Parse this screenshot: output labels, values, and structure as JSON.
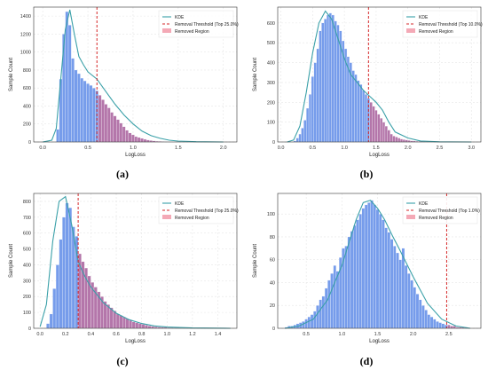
{
  "figure": {
    "captions": [
      "(a)",
      "(b)",
      "(c)",
      "(d)"
    ]
  },
  "colors": {
    "bar": "#6f97ea",
    "bar_removed": "#b06fa6",
    "kde": "#3aa0a8",
    "threshold": "#d62728",
    "removed_legend": "#f4a9b6",
    "grid": "#e6e6e6"
  },
  "chart_data": [
    {
      "type": "bar",
      "xlabel": "LogLoss",
      "ylabel": "Sample Count",
      "xlim": [
        -0.1,
        2.15
      ],
      "ylim": [
        0,
        1500
      ],
      "xticks": [
        0.0,
        0.5,
        1.0,
        1.5,
        2.0
      ],
      "yticks": [
        0,
        200,
        400,
        600,
        800,
        1000,
        1200,
        1400
      ],
      "grid": true,
      "legend_position": "top-right",
      "legend": [
        "KDE",
        "Removal Threshold (Top 25.0%)",
        "Removed Region"
      ],
      "threshold": 0.6,
      "bin_start": 0.15,
      "bin_width": 0.0333,
      "counts": [
        140,
        700,
        1200,
        1450,
        1300,
        930,
        800,
        760,
        710,
        680,
        650,
        630,
        600,
        570,
        520,
        470,
        420,
        380,
        330,
        290,
        250,
        210,
        170,
        130,
        100,
        80,
        60,
        50,
        40,
        30,
        22,
        16,
        12,
        9,
        7,
        5,
        4,
        3,
        2,
        2
      ],
      "kde_x": [
        0.0,
        0.1,
        0.15,
        0.2,
        0.25,
        0.3,
        0.35,
        0.4,
        0.45,
        0.5,
        0.6,
        0.7,
        0.8,
        0.9,
        1.0,
        1.1,
        1.2,
        1.3,
        1.4,
        1.5,
        1.7,
        2.0
      ],
      "kde_y": [
        0,
        20,
        150,
        700,
        1250,
        1470,
        1200,
        950,
        860,
        780,
        700,
        560,
        420,
        300,
        200,
        120,
        70,
        40,
        20,
        10,
        3,
        0
      ]
    },
    {
      "type": "bar",
      "xlabel": "LogLoss",
      "ylabel": "Sample Count",
      "xlim": [
        -0.05,
        3.15
      ],
      "ylim": [
        0,
        680
      ],
      "xticks": [
        0.0,
        0.5,
        1.0,
        1.5,
        2.0,
        2.5,
        3.0
      ],
      "yticks": [
        0,
        100,
        200,
        300,
        400,
        500,
        600
      ],
      "grid": true,
      "legend_position": "top-right",
      "legend": [
        "KDE",
        "Removal Threshold (Top 10.0%)",
        "Removed Region"
      ],
      "threshold": 1.38,
      "bin_start": 0.2,
      "bin_width": 0.04,
      "counts": [
        5,
        20,
        40,
        70,
        110,
        170,
        240,
        330,
        400,
        470,
        560,
        600,
        620,
        640,
        650,
        640,
        610,
        590,
        560,
        510,
        470,
        430,
        400,
        360,
        340,
        310,
        290,
        260,
        240,
        220,
        200,
        180,
        160,
        140,
        120,
        100,
        80,
        60,
        40,
        30,
        25,
        20,
        15,
        12,
        10,
        8,
        6,
        5,
        4,
        3,
        3,
        2,
        2,
        2,
        1
      ],
      "kde_x": [
        0.1,
        0.2,
        0.3,
        0.4,
        0.5,
        0.6,
        0.7,
        0.8,
        0.9,
        1.0,
        1.1,
        1.2,
        1.3,
        1.4,
        1.5,
        1.6,
        1.7,
        1.8,
        2.0,
        2.2,
        2.5,
        3.0
      ],
      "kde_y": [
        0,
        10,
        80,
        250,
        450,
        600,
        660,
        620,
        520,
        420,
        340,
        300,
        260,
        230,
        200,
        160,
        100,
        50,
        20,
        5,
        1,
        0
      ]
    },
    {
      "type": "bar",
      "xlabel": "LogLoss",
      "ylabel": "Sample Count",
      "xlim": [
        -0.05,
        1.55
      ],
      "ylim": [
        0,
        850
      ],
      "xticks": [
        0.0,
        0.2,
        0.4,
        0.6,
        0.8,
        1.0,
        1.2,
        1.4
      ],
      "yticks": [
        0,
        100,
        200,
        300,
        400,
        500,
        600,
        700,
        800
      ],
      "grid": true,
      "legend_position": "top-right",
      "legend": [
        "KDE",
        "Removal Threshold (Top 25.0%)",
        "Removed Region"
      ],
      "threshold": 0.3,
      "bin_start": 0.05,
      "bin_width": 0.025,
      "counts": [
        30,
        90,
        250,
        400,
        560,
        700,
        790,
        760,
        640,
        580,
        470,
        420,
        380,
        330,
        290,
        260,
        230,
        200,
        170,
        150,
        130,
        110,
        90,
        80,
        70,
        60,
        50,
        40,
        35,
        30,
        25,
        20,
        15,
        12,
        10,
        8,
        7,
        6,
        5,
        4,
        3,
        3,
        2,
        2,
        2,
        1
      ],
      "kde_x": [
        0.0,
        0.05,
        0.1,
        0.15,
        0.2,
        0.25,
        0.3,
        0.35,
        0.4,
        0.5,
        0.6,
        0.7,
        0.8,
        0.9,
        1.0,
        1.2,
        1.5
      ],
      "kde_y": [
        10,
        150,
        550,
        800,
        830,
        650,
        420,
        330,
        260,
        160,
        95,
        55,
        30,
        15,
        8,
        2,
        0
      ]
    },
    {
      "type": "bar",
      "xlabel": "LogLoss",
      "ylabel": "Sample Count",
      "xlim": [
        0.1,
        2.95
      ],
      "ylim": [
        0,
        118
      ],
      "xticks": [
        0.5,
        1.0,
        1.5,
        2.0,
        2.5
      ],
      "yticks": [
        0,
        20,
        40,
        60,
        80,
        100
      ],
      "grid": true,
      "legend_position": "top-right",
      "legend": [
        "KDE",
        "Removal Threshold (Top 1.0%)",
        "Removed Region"
      ],
      "threshold": 2.47,
      "bin_start": 0.2,
      "bin_width": 0.04,
      "counts": [
        1,
        2,
        2,
        3,
        4,
        5,
        6,
        8,
        10,
        12,
        15,
        20,
        25,
        28,
        35,
        42,
        48,
        55,
        50,
        62,
        70,
        72,
        80,
        85,
        90,
        95,
        100,
        105,
        108,
        110,
        112,
        108,
        104,
        100,
        95,
        88,
        84,
        78,
        72,
        66,
        60,
        70,
        55,
        48,
        42,
        36,
        30,
        25,
        20,
        16,
        12,
        10,
        8,
        6,
        5,
        4,
        3,
        3,
        2,
        2,
        1,
        1,
        1,
        1
      ],
      "kde_x": [
        0.2,
        0.4,
        0.6,
        0.8,
        1.0,
        1.1,
        1.2,
        1.3,
        1.4,
        1.5,
        1.6,
        1.7,
        1.8,
        2.0,
        2.2,
        2.4,
        2.6,
        2.8
      ],
      "kde_y": [
        0,
        2,
        8,
        25,
        55,
        75,
        95,
        110,
        112,
        105,
        95,
        82,
        70,
        45,
        22,
        8,
        2,
        0
      ]
    }
  ]
}
